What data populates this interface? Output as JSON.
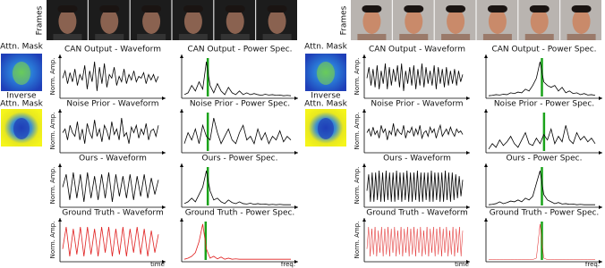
{
  "panels": [
    {
      "frames_label": "Frames",
      "mask_label": "Attn. Mask",
      "inverse_label": [
        "Inverse",
        "Attn. Mask"
      ],
      "y_label": "Norm. Amp.",
      "time_label": "time",
      "freq_label": "freq.",
      "rows": [
        {
          "waveform": {
            "title": "CAN Output - Waveform",
            "color": "#000000",
            "values": [
              0.5,
              0.7,
              0.35,
              0.65,
              0.4,
              0.75,
              0.3,
              0.6,
              0.45,
              0.85,
              0.2,
              0.7,
              0.4,
              0.95,
              0.15,
              0.8,
              0.35,
              0.9,
              0.25,
              0.6,
              0.5,
              0.8,
              0.3,
              0.55,
              0.4,
              0.75,
              0.35,
              0.6,
              0.45,
              0.7,
              0.4,
              0.55,
              0.5,
              0.65,
              0.35,
              0.6,
              0.45,
              0.6,
              0.4,
              0.55
            ]
          },
          "spectrum": {
            "title": "CAN Output - Power Spec.",
            "color": "#000000",
            "peak": 0.22,
            "peak_color": "#1aa31a",
            "values": [
              0.05,
              0.1,
              0.3,
              0.15,
              0.4,
              0.2,
              0.95,
              0.3,
              0.1,
              0.35,
              0.15,
              0.05,
              0.25,
              0.1,
              0.05,
              0.15,
              0.05,
              0.1,
              0.05,
              0.08,
              0.05,
              0.03,
              0.06,
              0.04,
              0.05,
              0.03,
              0.04,
              0.02,
              0.03,
              0.02
            ]
          }
        },
        {
          "waveform": {
            "title": "Noise Prior - Waveform",
            "color": "#000000",
            "values": [
              0.5,
              0.6,
              0.3,
              0.7,
              0.5,
              0.4,
              0.8,
              0.3,
              0.6,
              0.2,
              0.75,
              0.5,
              0.35,
              0.85,
              0.4,
              0.6,
              0.25,
              0.7,
              0.55,
              0.3,
              0.8,
              0.45,
              0.6,
              0.3,
              0.9,
              0.4,
              0.5,
              0.2,
              0.65,
              0.5,
              0.7,
              0.35,
              0.6,
              0.45,
              0.75,
              0.3,
              0.55,
              0.6,
              0.4,
              0.7
            ]
          },
          "spectrum": {
            "title": "Noise Prior - Power Spec.",
            "color": "#000000",
            "peak": 0.22,
            "peak_color": "#1aa31a",
            "values": [
              0.2,
              0.5,
              0.3,
              0.6,
              0.2,
              0.7,
              0.4,
              0.3,
              0.9,
              0.5,
              0.2,
              0.4,
              0.6,
              0.3,
              0.2,
              0.5,
              0.7,
              0.3,
              0.4,
              0.2,
              0.6,
              0.3,
              0.5,
              0.2,
              0.4,
              0.3,
              0.55,
              0.25,
              0.4,
              0.3
            ]
          }
        },
        {
          "waveform": {
            "title": "Ours - Waveform",
            "color": "#000000",
            "values": [
              0.5,
              0.85,
              0.15,
              0.9,
              0.2,
              0.85,
              0.1,
              0.9,
              0.2,
              0.8,
              0.15,
              0.85,
              0.2,
              0.9,
              0.1,
              0.85,
              0.25,
              0.8,
              0.2,
              0.85,
              0.15,
              0.8,
              0.25,
              0.85,
              0.2,
              0.75,
              0.3,
              0.7
            ]
          },
          "spectrum": {
            "title": "Ours - Power Spec.",
            "color": "#000000",
            "peak": 0.22,
            "peak_color": "#1aa31a",
            "values": [
              0.05,
              0.1,
              0.2,
              0.1,
              0.3,
              0.5,
              0.95,
              0.4,
              0.15,
              0.2,
              0.1,
              0.05,
              0.15,
              0.08,
              0.05,
              0.1,
              0.05,
              0.04,
              0.06,
              0.03,
              0.05,
              0.03,
              0.04,
              0.02,
              0.03,
              0.02,
              0.03,
              0.02,
              0.02,
              0.02
            ]
          }
        },
        {
          "waveform": {
            "title": "Ground Truth - Waveform",
            "color": "#e02020",
            "values": [
              0.3,
              0.9,
              0.1,
              0.85,
              0.15,
              0.9,
              0.1,
              0.9,
              0.15,
              0.85,
              0.1,
              0.9,
              0.2,
              0.9,
              0.1,
              0.85,
              0.15,
              0.9,
              0.1,
              0.85,
              0.2,
              0.9,
              0.15,
              0.85,
              0.1,
              0.8,
              0.2,
              0.7
            ]
          },
          "spectrum": {
            "title": "Ground Truth - Power Spec.",
            "color": "#e02020",
            "peak": 0.2,
            "peak_color": "#1aa31a",
            "values": [
              0.02,
              0.05,
              0.1,
              0.2,
              0.5,
              0.98,
              0.3,
              0.05,
              0.1,
              0.03,
              0.08,
              0.02,
              0.05,
              0.02,
              0.03,
              0.02,
              0.02,
              0.02,
              0.02,
              0.02,
              0.02,
              0.02,
              0.02,
              0.02,
              0.02,
              0.02,
              0.02,
              0.02,
              0.02,
              0.02
            ]
          }
        }
      ]
    },
    {
      "frames_label": "Frames",
      "mask_label": "Attn. Mask",
      "inverse_label": [
        "Inverse",
        "Attn. Mask"
      ],
      "y_label": "Norm. Amp.",
      "time_label": "time",
      "freq_label": "freq.",
      "rows": [
        {
          "waveform": {
            "title": "CAN Output - Waveform",
            "color": "#000000",
            "values": [
              0.5,
              0.8,
              0.3,
              0.75,
              0.25,
              0.85,
              0.2,
              0.7,
              0.35,
              0.9,
              0.2,
              0.8,
              0.3,
              0.75,
              0.4,
              0.85,
              0.25,
              0.9,
              0.15,
              0.7,
              0.35,
              0.8,
              0.3,
              0.85,
              0.2,
              0.75,
              0.3,
              0.9,
              0.25,
              0.8,
              0.35,
              0.7,
              0.3,
              0.85,
              0.2,
              0.8,
              0.35,
              0.75,
              0.25,
              0.8,
              0.3,
              0.7,
              0.35,
              0.75,
              0.3,
              0.7,
              0.4,
              0.6
            ]
          },
          "spectrum": {
            "title": "CAN Output - Power Spec.",
            "color": "#000000",
            "peak": 0.5,
            "peak_color": "#1aa31a",
            "values": [
              0.02,
              0.03,
              0.05,
              0.04,
              0.06,
              0.05,
              0.1,
              0.08,
              0.12,
              0.1,
              0.2,
              0.15,
              0.3,
              0.5,
              0.95,
              0.4,
              0.3,
              0.25,
              0.3,
              0.15,
              0.25,
              0.1,
              0.15,
              0.08,
              0.1,
              0.05,
              0.08,
              0.04,
              0.05,
              0.03
            ]
          }
        },
        {
          "waveform": {
            "title": "Noise Prior - Waveform",
            "color": "#000000",
            "values": [
              0.5,
              0.6,
              0.4,
              0.65,
              0.45,
              0.55,
              0.35,
              0.7,
              0.5,
              0.6,
              0.3,
              0.55,
              0.45,
              0.75,
              0.4,
              0.6,
              0.5,
              0.45,
              0.7,
              0.35,
              0.55,
              0.5,
              0.65,
              0.4,
              0.6,
              0.45,
              0.7,
              0.35,
              0.5,
              0.55,
              0.4,
              0.65,
              0.5,
              0.6,
              0.35,
              0.55,
              0.7,
              0.4,
              0.5,
              0.6,
              0.45,
              0.65,
              0.5,
              0.4,
              0.6,
              0.5,
              0.55,
              0.45
            ]
          },
          "spectrum": {
            "title": "Noise Prior - Power Spec.",
            "color": "#000000",
            "peak": 0.52,
            "peak_color": "#1aa31a",
            "values": [
              0.05,
              0.2,
              0.1,
              0.3,
              0.15,
              0.25,
              0.4,
              0.2,
              0.1,
              0.3,
              0.5,
              0.2,
              0.15,
              0.35,
              0.2,
              0.45,
              0.3,
              0.6,
              0.2,
              0.4,
              0.25,
              0.7,
              0.3,
              0.2,
              0.5,
              0.3,
              0.4,
              0.25,
              0.35,
              0.2
            ]
          }
        },
        {
          "waveform": {
            "title": "Ours - Waveform",
            "color": "#000000",
            "values": [
              0.4,
              0.85,
              0.1,
              0.9,
              0.1,
              0.9,
              0.15,
              0.95,
              0.1,
              0.9,
              0.1,
              0.95,
              0.15,
              0.9,
              0.1,
              0.9,
              0.1,
              0.95,
              0.15,
              0.9,
              0.1,
              0.9,
              0.15,
              0.95,
              0.1,
              0.9,
              0.1,
              0.9,
              0.15,
              0.95,
              0.1,
              0.9,
              0.1,
              0.9,
              0.15,
              0.9,
              0.1,
              0.95,
              0.1,
              0.9,
              0.15,
              0.9,
              0.1,
              0.9,
              0.1,
              0.95,
              0.15,
              0.9,
              0.1,
              0.9,
              0.15,
              0.85,
              0.2,
              0.8,
              0.25,
              0.7
            ]
          },
          "spectrum": {
            "title": "Ours - Power Spec.",
            "color": "#000000",
            "peak": 0.5,
            "peak_color": "#1aa31a",
            "values": [
              0.02,
              0.03,
              0.05,
              0.1,
              0.05,
              0.08,
              0.12,
              0.1,
              0.15,
              0.1,
              0.2,
              0.15,
              0.25,
              0.6,
              0.95,
              0.3,
              0.15,
              0.1,
              0.05,
              0.08,
              0.04,
              0.05,
              0.03,
              0.04,
              0.02,
              0.03,
              0.02,
              0.02,
              0.02,
              0.02
            ]
          }
        },
        {
          "waveform": {
            "title": "Ground Truth - Waveform",
            "color": "#e02020",
            "values": [
              0.3,
              0.9,
              0.1,
              0.85,
              0.15,
              0.9,
              0.1,
              0.8,
              0.2,
              0.9,
              0.1,
              0.85,
              0.15,
              0.9,
              0.1,
              0.85,
              0.2,
              0.9,
              0.1,
              0.8,
              0.15,
              0.9,
              0.1,
              0.85,
              0.2,
              0.9,
              0.1,
              0.85,
              0.15,
              0.9,
              0.1,
              0.85,
              0.2,
              0.9,
              0.1,
              0.8,
              0.15,
              0.9,
              0.1,
              0.85,
              0.2,
              0.9,
              0.1,
              0.85,
              0.15,
              0.9,
              0.1,
              0.85,
              0.2,
              0.9,
              0.1,
              0.8,
              0.15,
              0.9,
              0.1,
              0.85,
              0.2,
              0.9,
              0.1,
              0.8
            ]
          },
          "spectrum": {
            "title": "Ground Truth - Power Spec.",
            "color": "#e02020",
            "peak": 0.5,
            "peak_color": "#1aa31a",
            "values": [
              0.01,
              0.01,
              0.01,
              0.01,
              0.01,
              0.01,
              0.01,
              0.01,
              0.01,
              0.01,
              0.01,
              0.01,
              0.01,
              0.05,
              0.98,
              0.05,
              0.01,
              0.01,
              0.01,
              0.01,
              0.01,
              0.01,
              0.01,
              0.01,
              0.01,
              0.01,
              0.01,
              0.01,
              0.01,
              0.01
            ]
          }
        }
      ]
    }
  ]
}
